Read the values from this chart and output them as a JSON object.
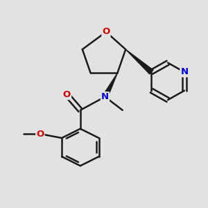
{
  "bg_color": "#e2e2e2",
  "bond_color": "#1a1a1a",
  "bond_width": 1.8,
  "atom_colors": {
    "O": "#cc0000",
    "N": "#0000cc",
    "C": "#1a1a1a"
  },
  "font_size": 9.5
}
